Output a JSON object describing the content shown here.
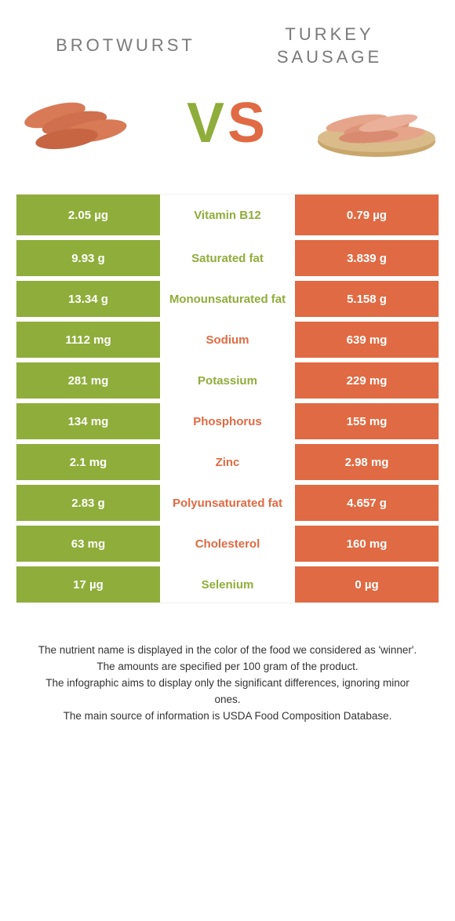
{
  "colors": {
    "green": "#8fad3a",
    "orange": "#e06a43",
    "sausage_brot": "#d87a56",
    "sausage_turkey": "#e6a48a",
    "board": "#c9a66b",
    "text_gray": "#7a7a7a"
  },
  "header": {
    "left_title": "BROTWURST",
    "right_title_line1": "TURKEY",
    "right_title_line2": "SAUSAGE"
  },
  "vs_label": "VS",
  "table": {
    "rows": [
      {
        "left": "2.05 µg",
        "label": "Vitamin B12",
        "right": "0.79 µg",
        "winner": "left"
      },
      {
        "left": "9.93 g",
        "label": "Saturated fat",
        "right": "3.839 g",
        "winner": "left"
      },
      {
        "left": "13.34 g",
        "label": "Monounsaturated fat",
        "right": "5.158 g",
        "winner": "left"
      },
      {
        "left": "1112 mg",
        "label": "Sodium",
        "right": "639 mg",
        "winner": "right"
      },
      {
        "left": "281 mg",
        "label": "Potassium",
        "right": "229 mg",
        "winner": "left"
      },
      {
        "left": "134 mg",
        "label": "Phosphorus",
        "right": "155 mg",
        "winner": "right"
      },
      {
        "left": "2.1 mg",
        "label": "Zinc",
        "right": "2.98 mg",
        "winner": "right"
      },
      {
        "left": "2.83 g",
        "label": "Polyunsaturated fat",
        "right": "4.657 g",
        "winner": "right"
      },
      {
        "left": "63 mg",
        "label": "Cholesterol",
        "right": "160 mg",
        "winner": "right"
      },
      {
        "left": "17 µg",
        "label": "Selenium",
        "right": "0 µg",
        "winner": "left"
      }
    ]
  },
  "footer": {
    "line1": "The nutrient name is displayed in the color of the food we considered as 'winner'.",
    "line2": "The amounts are specified per 100 gram of the product.",
    "line3": "The infographic aims to display only the significant differences, ignoring minor ones.",
    "line4": "The main source of information is USDA Food Composition Database."
  }
}
